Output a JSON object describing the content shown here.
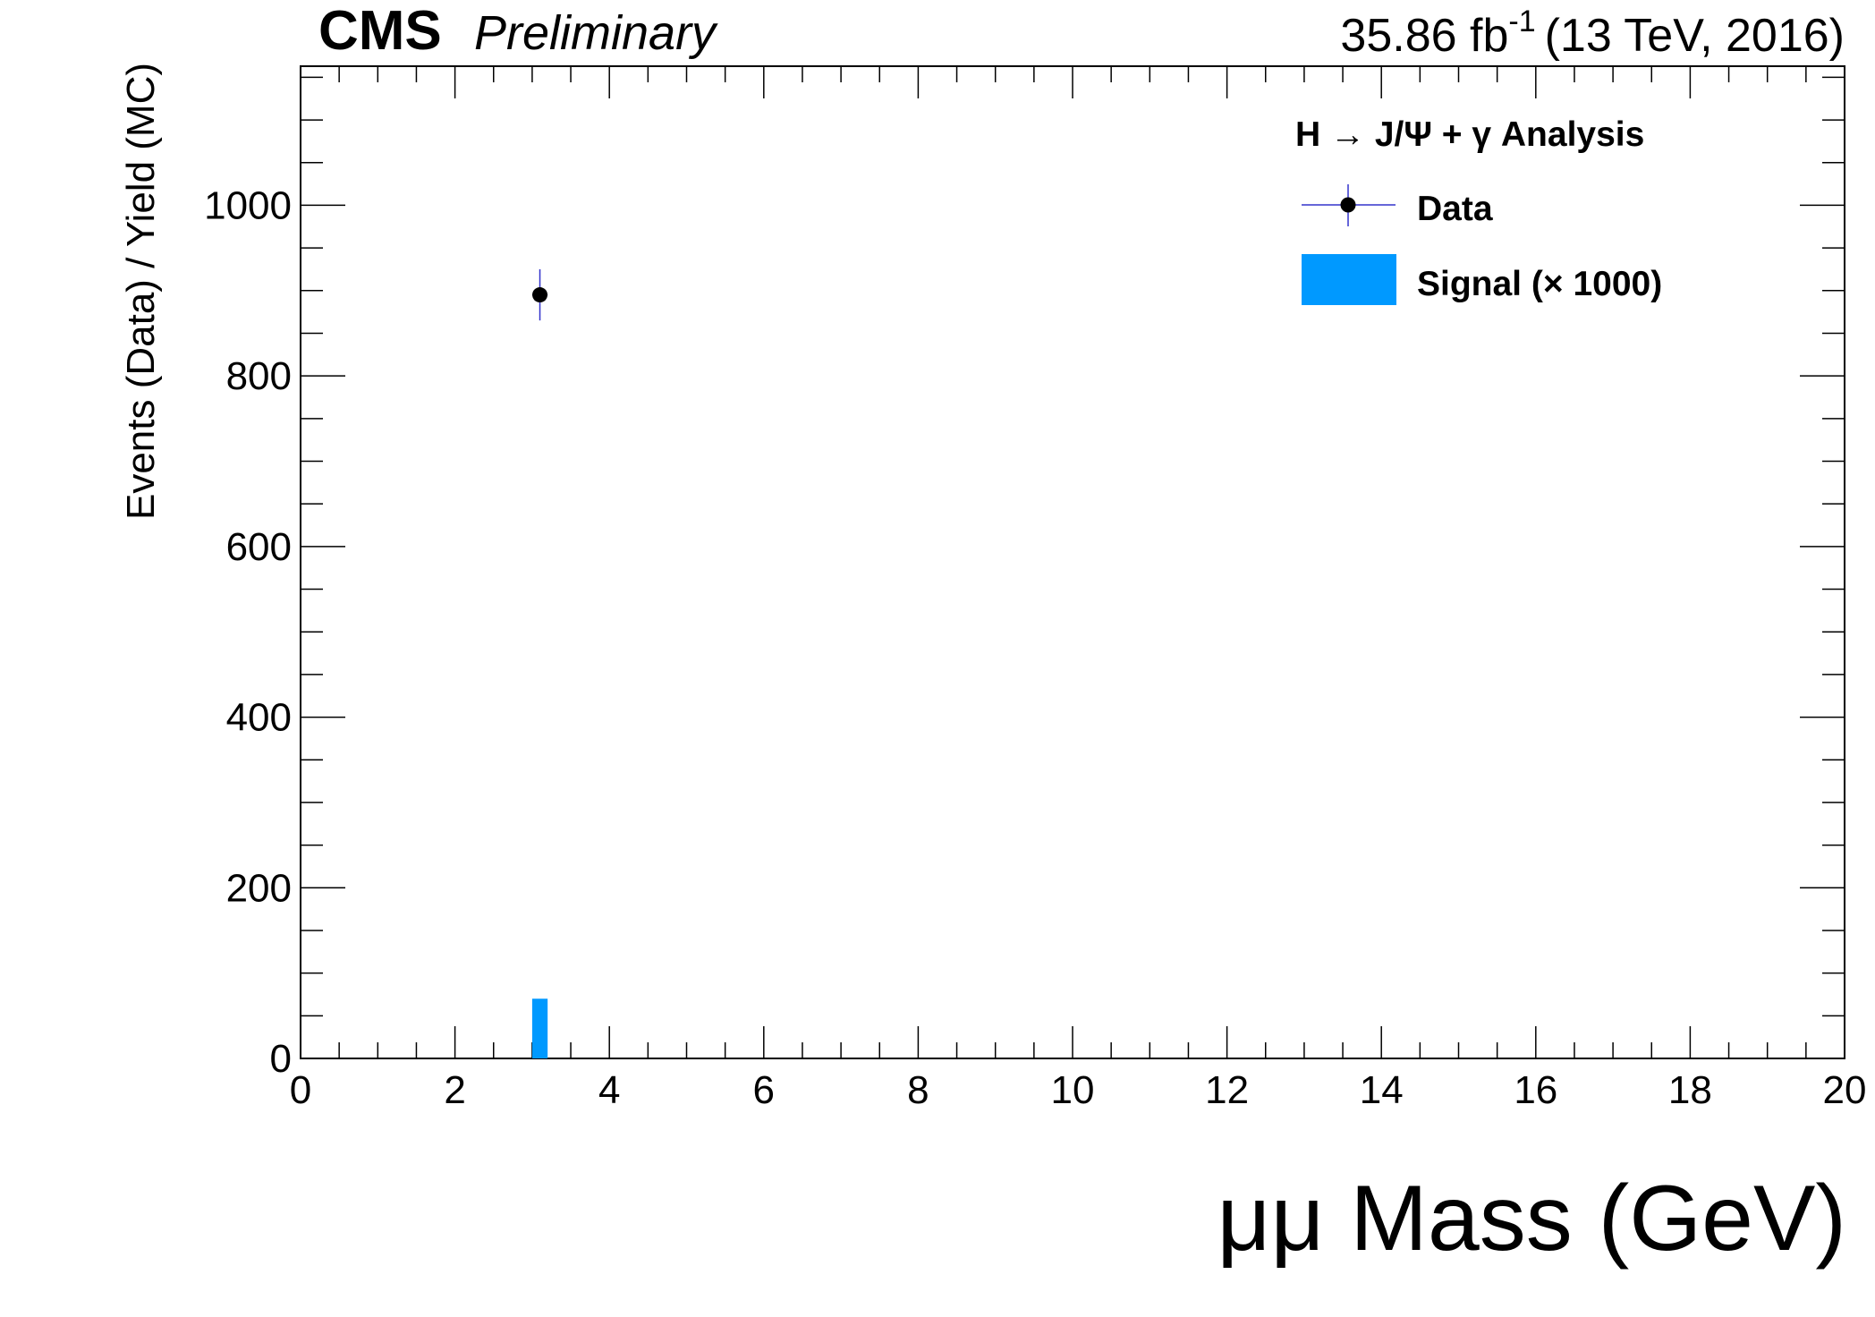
{
  "header": {
    "experiment": "CMS",
    "status": "Preliminary",
    "luminosity_value": "35.86 fb",
    "luminosity_exponent": "-1",
    "energy": "(13 TeV, 2016)"
  },
  "legend": {
    "title": "H → J/Ψ + γ Analysis",
    "entries": [
      {
        "label": "Data",
        "kind": "marker",
        "color": "#000000",
        "error_color": "#3333cc"
      },
      {
        "label": "Signal (× 1000)",
        "kind": "fill",
        "color": "#0099ff"
      }
    ]
  },
  "chart_data": {
    "type": "bar",
    "xlabel": "μμ Mass (GeV)",
    "ylabel": "Events (Data) / Yield (MC)",
    "xlim": [
      0,
      20
    ],
    "ylim": [
      0,
      1163
    ],
    "x_ticks": [
      0,
      2,
      4,
      6,
      8,
      10,
      12,
      14,
      16,
      18,
      20
    ],
    "y_ticks": [
      0,
      200,
      400,
      600,
      800,
      1000
    ],
    "series": [
      {
        "name": "Data",
        "type": "points",
        "color": "#000000",
        "error_color": "#3333cc",
        "points": [
          {
            "x": 3.1,
            "y": 895,
            "yerr": 30,
            "xerr": 0.1
          }
        ]
      },
      {
        "name": "Signal (× 1000)",
        "type": "histogram",
        "color": "#0099ff",
        "bins": [
          {
            "x_low": 3.0,
            "x_high": 3.2,
            "value": 70
          }
        ]
      }
    ]
  }
}
